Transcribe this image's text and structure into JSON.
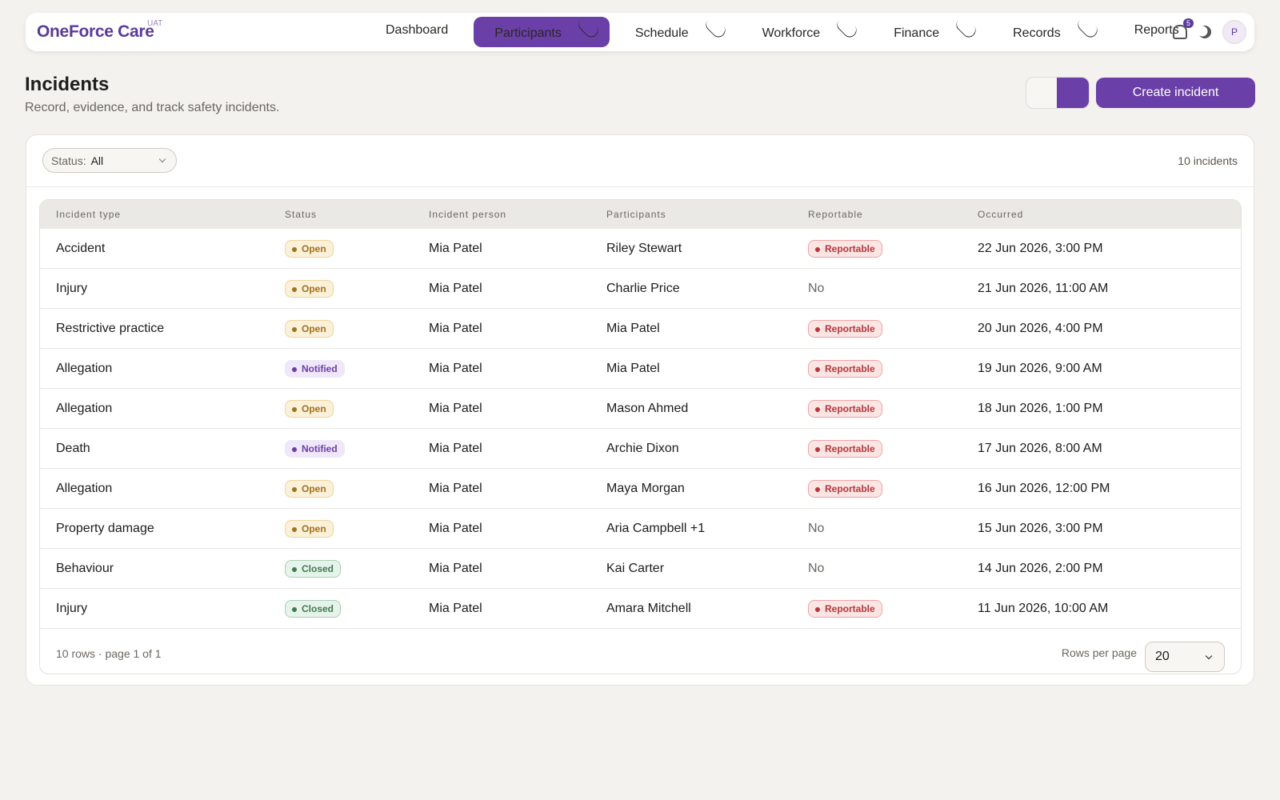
{
  "header": {
    "brand": "OneForce Care",
    "env": "UAT",
    "nav": [
      "Dashboard",
      "Participants",
      "Schedule",
      "Workforce",
      "Finance",
      "Records",
      "Reports"
    ],
    "notifications": "5",
    "avatar": "P"
  },
  "page": {
    "title": "Incidents",
    "subtitle": "Record, evidence, and track safety incidents.",
    "create_button": "Create incident"
  },
  "filter": {
    "label": "Status:",
    "value": "All",
    "count": "10 incidents"
  },
  "table": {
    "headers": [
      "Incident type",
      "Status",
      "Incident person",
      "Participants",
      "Reportable",
      "Occurred"
    ],
    "rows": [
      [
        "Accident",
        "Open",
        "Mia Patel",
        "Riley Stewart",
        "Reportable",
        "22 Jun 2026, 3:00 PM"
      ],
      [
        "Injury",
        "Open",
        "Mia Patel",
        "Charlie Price",
        "No",
        "21 Jun 2026, 11:00 AM"
      ],
      [
        "Restrictive practice",
        "Open",
        "Mia Patel",
        "Mia Patel",
        "Reportable",
        "20 Jun 2026, 4:00 PM"
      ],
      [
        "Allegation",
        "Notified",
        "Mia Patel",
        "Mia Patel",
        "Reportable",
        "19 Jun 2026, 9:00 AM"
      ],
      [
        "Allegation",
        "Open",
        "Mia Patel",
        "Mason Ahmed",
        "Reportable",
        "18 Jun 2026, 1:00 PM"
      ],
      [
        "Death",
        "Notified",
        "Mia Patel",
        "Archie Dixon",
        "Reportable",
        "17 Jun 2026, 8:00 AM"
      ],
      [
        "Allegation",
        "Open",
        "Mia Patel",
        "Maya Morgan",
        "Reportable",
        "16 Jun 2026, 12:00 PM"
      ],
      [
        "Property damage",
        "Open",
        "Mia Patel",
        "Aria Campbell +1",
        "No",
        "15 Jun 2026, 3:00 PM"
      ],
      [
        "Behaviour",
        "Closed",
        "Mia Patel",
        "Kai Carter",
        "No",
        "14 Jun 2026, 2:00 PM"
      ],
      [
        "Injury",
        "Closed",
        "Mia Patel",
        "Amara Mitchell",
        "Reportable",
        "11 Jun 2026, 10:00 AM"
      ]
    ]
  },
  "footer": {
    "summary": "10 rows · page 1 of 1",
    "rows_per_page_label": "Rows per page",
    "rows_per_page": "20"
  }
}
